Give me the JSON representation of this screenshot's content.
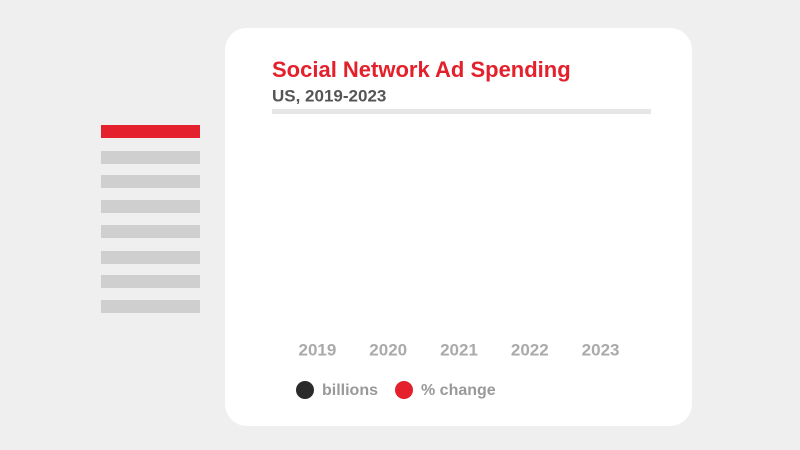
{
  "chart_data": {
    "type": "bar",
    "title": "Social Network Ad Spending",
    "subtitle": "US, 2019-2023",
    "categories": [
      "2019",
      "2020",
      "2021",
      "2022",
      "2023"
    ],
    "series": [
      {
        "name": "billions",
        "color": "#2a2a2a"
      },
      {
        "name": "% change",
        "color": "#e3202b"
      }
    ]
  }
}
